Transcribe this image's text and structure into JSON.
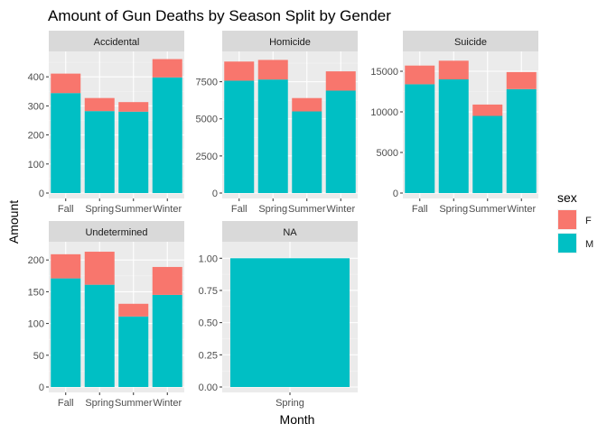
{
  "chart_data": {
    "type": "bar",
    "title": "Amount of Gun Deaths by Season Split by Gender",
    "xlabel": "Month",
    "ylabel": "Amount",
    "legend": {
      "title": "sex",
      "position": "right",
      "entries": [
        {
          "name": "F",
          "color": "#F8766D"
        },
        {
          "name": "M",
          "color": "#00BFC4"
        }
      ]
    },
    "grid": true,
    "stacked": true,
    "facets": [
      {
        "label": "Accidental",
        "categories": [
          "Fall",
          "Spring",
          "Summer",
          "Winter"
        ],
        "series": [
          {
            "name": "M",
            "values": [
              344,
              282,
              280,
              398
            ]
          },
          {
            "name": "F",
            "values": [
              67,
              45,
              33,
              63
            ]
          }
        ],
        "ylim": [
          0,
          475
        ],
        "yticks": [
          0,
          100,
          200,
          300,
          400
        ],
        "ytick_labels": [
          "0",
          "100",
          "200",
          "300",
          "400"
        ]
      },
      {
        "label": "Homicide",
        "categories": [
          "Fall",
          "Spring",
          "Summer",
          "Winter"
        ],
        "series": [
          {
            "name": "M",
            "values": [
              7570,
              7650,
              5500,
              6900
            ]
          },
          {
            "name": "F",
            "values": [
              1290,
              1320,
              900,
              1300
            ]
          }
        ],
        "ylim": [
          0,
          9300
        ],
        "yticks": [
          0,
          2500,
          5000,
          7500
        ],
        "ytick_labels": [
          "0",
          "2500",
          "5000",
          "7500"
        ]
      },
      {
        "label": "Suicide",
        "categories": [
          "Fall",
          "Spring",
          "Summer",
          "Winter"
        ],
        "series": [
          {
            "name": "M",
            "values": [
              13400,
              14000,
              9500,
              12800
            ]
          },
          {
            "name": "F",
            "values": [
              2300,
              2300,
              1400,
              2100
            ]
          }
        ],
        "ylim": [
          0,
          17000
        ],
        "yticks": [
          0,
          5000,
          10000,
          15000
        ],
        "ytick_labels": [
          "0",
          "5000",
          "10000",
          "15000"
        ]
      },
      {
        "label": "Undetermined",
        "categories": [
          "Fall",
          "Spring",
          "Summer",
          "Winter"
        ],
        "series": [
          {
            "name": "M",
            "values": [
              171,
              161,
              111,
              145
            ]
          },
          {
            "name": "F",
            "values": [
              38,
              52,
              20,
              44
            ]
          }
        ],
        "ylim": [
          0,
          223
        ],
        "yticks": [
          0,
          50,
          100,
          150,
          200
        ],
        "ytick_labels": [
          "0",
          "50",
          "100",
          "150",
          "200"
        ]
      },
      {
        "label": "NA",
        "categories": [
          "Spring"
        ],
        "series": [
          {
            "name": "M",
            "values": [
              1
            ]
          },
          {
            "name": "F",
            "values": [
              0
            ]
          }
        ],
        "ylim": [
          0,
          1.1
        ],
        "yticks": [
          0,
          0.25,
          0.5,
          0.75,
          1.0
        ],
        "ytick_labels": [
          "0.00",
          "0.25",
          "0.50",
          "0.75",
          "1.00"
        ]
      }
    ]
  }
}
